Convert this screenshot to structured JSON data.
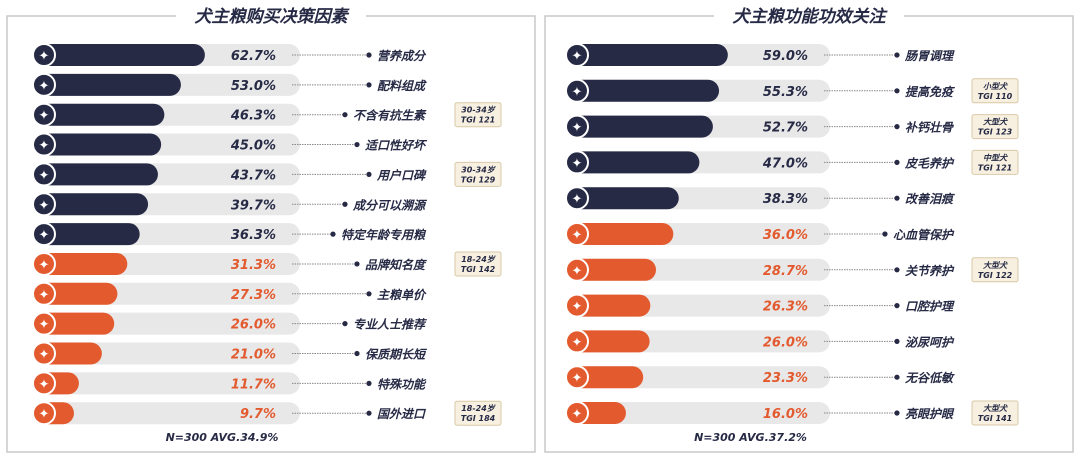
{
  "colors": {
    "navy": "#262a45",
    "orange": "#e35a2e",
    "track": "#e8e8e8",
    "frame": "#c8c8c8",
    "badge_bg": "#f7f0e1",
    "badge_border": "#d9c9a6"
  },
  "chart_data": [
    {
      "type": "bar",
      "orientation": "horizontal",
      "title": "犬主粮购买决策因素",
      "footnote": "N=300   AVG.34.9%",
      "unit": "%",
      "xlim": [
        0,
        100
      ],
      "highlight_count": 7,
      "categories": [
        "营养成分",
        "配料组成",
        "不含有抗生素",
        "适口性好坏",
        "用户口碑",
        "成分可以溯源",
        "特定年龄专用粮",
        "品牌知名度",
        "主粮单价",
        "专业人士推荐",
        "保质期长短",
        "特殊功能",
        "国外进口"
      ],
      "values": [
        62.7,
        53.0,
        46.3,
        45.0,
        43.7,
        39.7,
        36.3,
        31.3,
        27.3,
        26.0,
        21.0,
        11.7,
        9.7
      ],
      "value_labels": [
        "62.7%",
        "53.0%",
        "46.3%",
        "45.0%",
        "43.7%",
        "39.7%",
        "36.3%",
        "31.3%",
        "27.3%",
        "26.0%",
        "21.0%",
        "11.7%",
        "9.7%"
      ],
      "badges": [
        null,
        null,
        [
          "30-34岁",
          "TGI 121"
        ],
        null,
        [
          "30-34岁",
          "TGI 129"
        ],
        null,
        null,
        [
          "18-24岁",
          "TGI 142"
        ],
        null,
        null,
        null,
        null,
        [
          "18-24岁",
          "TGI 184"
        ]
      ]
    },
    {
      "type": "bar",
      "orientation": "horizontal",
      "title": "犬主粮功能功效关注",
      "footnote": "N=300   AVG.37.2%",
      "unit": "%",
      "xlim": [
        0,
        100
      ],
      "highlight_count": 5,
      "categories": [
        "肠胃调理",
        "提高免疫",
        "补钙壮骨",
        "皮毛养护",
        "改善泪痕",
        "心血管保护",
        "关节养护",
        "口腔护理",
        "泌尿呵护",
        "无谷低敏",
        "亮眼护眼"
      ],
      "values": [
        59.0,
        55.3,
        52.7,
        47.0,
        38.3,
        36.0,
        28.7,
        26.3,
        26.0,
        23.3,
        16.0
      ],
      "value_labels": [
        "59.0%",
        "55.3%",
        "52.7%",
        "47.0%",
        "38.3%",
        "36.0%",
        "28.7%",
        "26.3%",
        "26.0%",
        "23.3%",
        "16.0%"
      ],
      "badges": [
        null,
        [
          "小型犬",
          "TGI 110"
        ],
        [
          "大型犬",
          "TGI 123"
        ],
        [
          "中型犬",
          "TGI 121"
        ],
        null,
        null,
        [
          "大型犬",
          "TGI 122"
        ],
        null,
        null,
        null,
        [
          "大型犬",
          "TGI 141"
        ]
      ]
    }
  ]
}
